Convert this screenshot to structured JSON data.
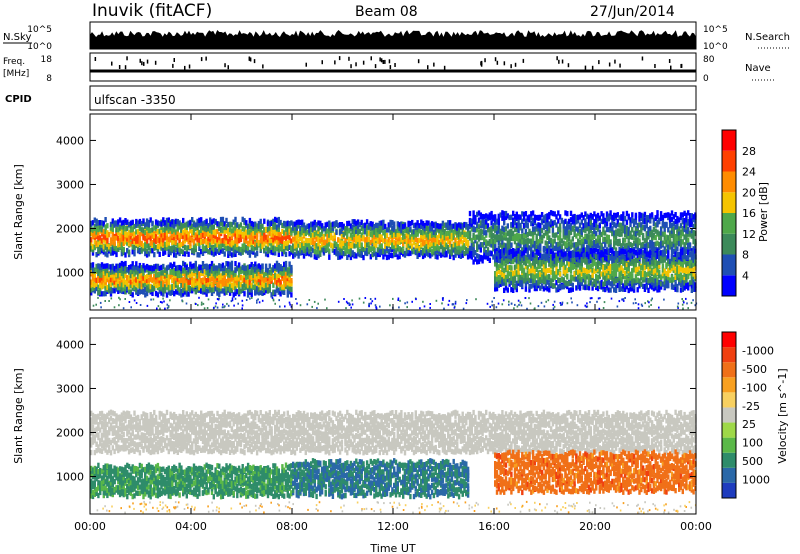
{
  "header": {
    "title": "Inuvik (fitACF)",
    "beam": "Beam 08",
    "date": "27/Jun/2014"
  },
  "top_panels": {
    "nsky_label": "N.Sky",
    "nsky_ticks": [
      "10^5",
      "10^0"
    ],
    "nsearch_label": "N.Search",
    "nsearch_ticks": [
      "10^5",
      "10^0"
    ],
    "freq_label_line1": "Freq.",
    "freq_label_line2": "[MHz]",
    "freq_ticks": [
      "18",
      "8"
    ],
    "nave_label": "Nave",
    "nave_ticks": [
      "80",
      "0"
    ],
    "cpid_label": "CPID",
    "cpid_value": "ulfscan -3350"
  },
  "colors": {
    "power_scale": [
      "#0000ff",
      "#1f4fb4",
      "#3c8a5a",
      "#4fa84a",
      "#f5c400",
      "#ff8c00",
      "#ff4000",
      "#ff0000"
    ],
    "velocity_scale": [
      "#1e3cbe",
      "#2a68a8",
      "#2e8c6a",
      "#5ab848",
      "#9ed848",
      "#c8c8c0",
      "#f8d060",
      "#f8a020",
      "#f07018",
      "#f04010",
      "#ff0000"
    ]
  },
  "chart_data": [
    {
      "type": "heatmap",
      "name": "power",
      "ylabel": "Slant Range [km]",
      "yticks": [
        "1000",
        "2000",
        "3000",
        "4000"
      ],
      "ylim": [
        150,
        4600
      ],
      "xlim": [
        0,
        24
      ],
      "xticks": [
        "00:00",
        "04:00",
        "08:00",
        "12:00",
        "16:00",
        "20:00",
        "00:00"
      ],
      "colorbar_label": "Power [dB]",
      "colorbar_ticks": [
        "4",
        "8",
        "12",
        "16",
        "20",
        "24",
        "28"
      ],
      "bands": [
        {
          "from_hour": 0,
          "to_hour": 8,
          "range_center_km": 1800,
          "width_km": 350,
          "peak_db": 26
        },
        {
          "from_hour": 0,
          "to_hour": 8,
          "range_center_km": 850,
          "width_km": 300,
          "peak_db": 24
        },
        {
          "from_hour": 8,
          "to_hour": 15,
          "range_center_km": 1750,
          "width_km": 350,
          "peak_db": 22
        },
        {
          "from_hour": 15,
          "to_hour": 24,
          "range_center_km": 1800,
          "width_km": 500,
          "peak_db": 12
        },
        {
          "from_hour": 16,
          "to_hour": 24,
          "range_center_km": 1050,
          "width_km": 400,
          "peak_db": 18
        }
      ]
    },
    {
      "type": "heatmap",
      "name": "velocity",
      "ylabel": "Slant Range [km]",
      "yticks": [
        "1000",
        "2000",
        "3000",
        "4000"
      ],
      "ylim": [
        150,
        4600
      ],
      "xlim": [
        0,
        24
      ],
      "xticks": [
        "00:00",
        "04:00",
        "08:00",
        "12:00",
        "16:00",
        "20:00",
        "00:00"
      ],
      "xlabel": "Time UT",
      "colorbar_label": "Velocity [m s^-1]",
      "colorbar_ticks": [
        "1000",
        "500",
        "100",
        "25",
        "-25",
        "-100",
        "-500",
        "-1000"
      ],
      "bands": [
        {
          "from_hour": 0,
          "to_hour": 15,
          "range_center_km": 2000,
          "width_km": 400,
          "value_ms": 0
        },
        {
          "from_hour": 0,
          "to_hour": 8,
          "range_center_km": 900,
          "width_km": 300,
          "value_ms": 150
        },
        {
          "from_hour": 8,
          "to_hour": 15,
          "range_center_km": 950,
          "width_km": 350,
          "value_ms": 300
        },
        {
          "from_hour": 15,
          "to_hour": 24,
          "range_center_km": 2000,
          "width_km": 400,
          "value_ms": 0
        },
        {
          "from_hour": 16,
          "to_hour": 24,
          "range_center_km": 1100,
          "width_km": 400,
          "value_ms": -200
        }
      ]
    }
  ]
}
